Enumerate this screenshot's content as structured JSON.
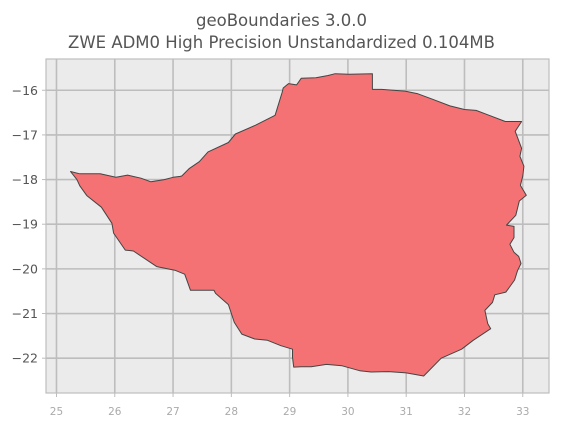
{
  "chart_data": {
    "type": "map",
    "title": "geoBoundaries 3.0.0",
    "subtitle": "ZWE ADM0 High Precision Unstandardized 0.104MB",
    "xlabel": "",
    "ylabel": "",
    "xlim": [
      24.82,
      33.45
    ],
    "ylim": [
      -22.78,
      -15.3
    ],
    "xticks": [
      25,
      26,
      27,
      28,
      29,
      30,
      31,
      32,
      33
    ],
    "yticks": [
      -16,
      -17,
      -18,
      -19,
      -20,
      -21,
      -22
    ],
    "xtick_labels": [
      "25",
      "26",
      "27",
      "28",
      "29",
      "30",
      "31",
      "32",
      "33"
    ],
    "ytick_labels": [
      "−16",
      "−17",
      "−18",
      "−19",
      "−20",
      "−21",
      "−22"
    ],
    "grid": true,
    "background_color": "#ebebeb",
    "grid_color": "#bdbdbd",
    "fill_color": "#f47274",
    "edge_color": "#444444",
    "polygon": [
      [
        25.24,
        -17.82
      ],
      [
        25.4,
        -17.87
      ],
      [
        25.75,
        -17.87
      ],
      [
        26.02,
        -17.95
      ],
      [
        26.22,
        -17.9
      ],
      [
        26.45,
        -17.97
      ],
      [
        26.62,
        -18.05
      ],
      [
        26.85,
        -18.0
      ],
      [
        27.0,
        -17.95
      ],
      [
        27.12,
        -17.93
      ],
      [
        27.15,
        -17.92
      ],
      [
        27.28,
        -17.75
      ],
      [
        27.45,
        -17.6
      ],
      [
        27.6,
        -17.38
      ],
      [
        27.95,
        -17.17
      ],
      [
        28.07,
        -16.98
      ],
      [
        28.42,
        -16.78
      ],
      [
        28.75,
        -16.56
      ],
      [
        28.87,
        -16.05
      ],
      [
        28.89,
        -15.95
      ],
      [
        28.98,
        -15.85
      ],
      [
        29.12,
        -15.88
      ],
      [
        29.2,
        -15.73
      ],
      [
        29.45,
        -15.72
      ],
      [
        29.66,
        -15.67
      ],
      [
        29.78,
        -15.63
      ],
      [
        30.02,
        -15.64
      ],
      [
        30.42,
        -15.63
      ],
      [
        30.42,
        -15.98
      ],
      [
        30.58,
        -15.98
      ],
      [
        30.98,
        -16.02
      ],
      [
        31.2,
        -16.08
      ],
      [
        31.45,
        -16.2
      ],
      [
        31.75,
        -16.35
      ],
      [
        32.0,
        -16.43
      ],
      [
        32.2,
        -16.45
      ],
      [
        32.4,
        -16.55
      ],
      [
        32.7,
        -16.7
      ],
      [
        32.98,
        -16.7
      ],
      [
        32.87,
        -16.92
      ],
      [
        32.98,
        -17.3
      ],
      [
        32.95,
        -17.48
      ],
      [
        33.02,
        -17.7
      ],
      [
        33.0,
        -17.92
      ],
      [
        32.96,
        -18.13
      ],
      [
        33.06,
        -18.35
      ],
      [
        32.94,
        -18.48
      ],
      [
        32.88,
        -18.8
      ],
      [
        32.72,
        -19.02
      ],
      [
        32.85,
        -19.05
      ],
      [
        32.85,
        -19.3
      ],
      [
        32.78,
        -19.45
      ],
      [
        32.85,
        -19.63
      ],
      [
        32.93,
        -19.72
      ],
      [
        32.97,
        -19.88
      ],
      [
        32.91,
        -20.04
      ],
      [
        32.86,
        -20.25
      ],
      [
        32.71,
        -20.52
      ],
      [
        32.52,
        -20.58
      ],
      [
        32.48,
        -20.75
      ],
      [
        32.35,
        -20.93
      ],
      [
        32.4,
        -21.23
      ],
      [
        32.45,
        -21.34
      ],
      [
        32.15,
        -21.6
      ],
      [
        31.95,
        -21.8
      ],
      [
        31.6,
        -22.0
      ],
      [
        31.3,
        -22.4
      ],
      [
        31.0,
        -22.33
      ],
      [
        30.7,
        -22.3
      ],
      [
        30.4,
        -22.31
      ],
      [
        30.2,
        -22.28
      ],
      [
        29.9,
        -22.17
      ],
      [
        29.63,
        -22.14
      ],
      [
        29.37,
        -22.19
      ],
      [
        29.2,
        -22.19
      ],
      [
        29.07,
        -22.2
      ],
      [
        29.05,
        -21.98
      ],
      [
        29.05,
        -21.8
      ],
      [
        28.85,
        -21.72
      ],
      [
        28.62,
        -21.6
      ],
      [
        28.4,
        -21.57
      ],
      [
        28.18,
        -21.46
      ],
      [
        28.05,
        -21.2
      ],
      [
        27.95,
        -20.8
      ],
      [
        27.73,
        -20.55
      ],
      [
        27.7,
        -20.48
      ],
      [
        27.3,
        -20.48
      ],
      [
        27.2,
        -20.12
      ],
      [
        27.03,
        -20.03
      ],
      [
        26.72,
        -19.95
      ],
      [
        26.32,
        -19.6
      ],
      [
        26.18,
        -19.58
      ],
      [
        25.98,
        -19.2
      ],
      [
        25.95,
        -18.98
      ],
      [
        25.77,
        -18.62
      ],
      [
        25.52,
        -18.36
      ],
      [
        25.4,
        -18.14
      ],
      [
        25.35,
        -18.0
      ]
    ]
  }
}
